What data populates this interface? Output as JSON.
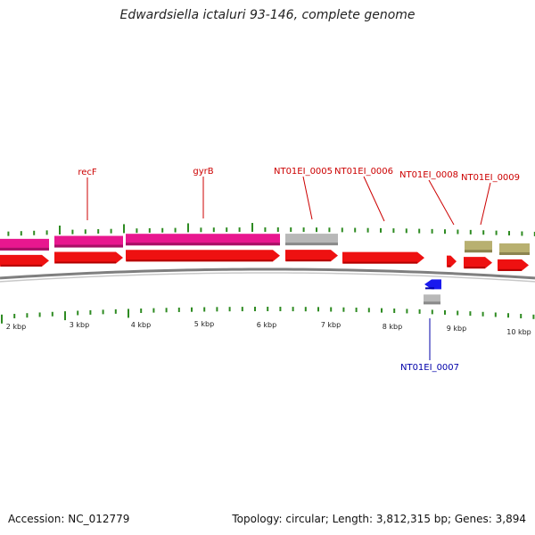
{
  "title": "Edwardsiella ictaluri 93-146, complete genome",
  "footer": {
    "accession": "Accession: NC_012779",
    "topology": "Topology: circular; Length: 3,812,315 bp; Genes: 3,894"
  },
  "colors": {
    "pink": "#e8178f",
    "pink_light": "#f5a3cf",
    "red": "#ee1111",
    "red_dark": "#b30000",
    "gray": "#b8b8b8",
    "gray_dark": "#8a8a8a",
    "olive": "#b8b070",
    "olive_dark": "#8c8450",
    "blue": "#1a1aee",
    "blue_dark": "#0000a8",
    "tick": "#2e8b22",
    "backbone": "#7f7f7f",
    "label_red": "#cc0000",
    "label_blue": "#0000aa"
  },
  "kbp_labels": [
    "2 kbp",
    "3 kbp",
    "4 kbp",
    "5 kbp",
    "6 kbp",
    "7 kbp",
    "8 kbp",
    "9 kbp",
    "10 kbp"
  ],
  "gene_labels": [
    {
      "text": "recF",
      "color": "label_red"
    },
    {
      "text": "gyrB",
      "color": "label_red"
    },
    {
      "text": "NT01EI_0005",
      "color": "label_red"
    },
    {
      "text": "NT01EI_0006",
      "color": "label_red"
    },
    {
      "text": "NT01EI_0008",
      "color": "label_red"
    },
    {
      "text": "NT01EI_0009",
      "color": "label_red"
    },
    {
      "text": "NT01EI_0007",
      "color": "label_blue"
    }
  ],
  "feature_icons": [
    "pink-bar",
    "red-arrow",
    "gray-bar",
    "olive-bar",
    "blue-arrow"
  ]
}
